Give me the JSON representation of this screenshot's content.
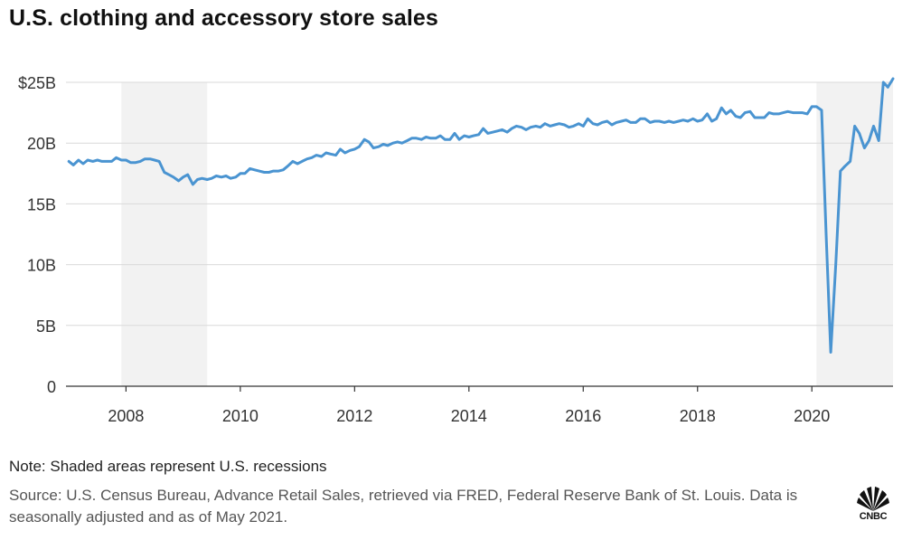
{
  "header": {
    "title": "U.S. clothing and accessory store sales"
  },
  "footer": {
    "note": "Note: Shaded areas represent U.S. recessions",
    "source": "Source: U.S. Census Bureau, Advance Retail Sales, retrieved via FRED, Federal Reserve Bank of St. Louis. Data is seasonally adjusted and as of May 2021.",
    "logo_text": "CNBC"
  },
  "colors": {
    "line": "#4a94d1",
    "recession_shade": "#f2f2f2",
    "grid": "#d9d9d9",
    "axis": "#333333"
  },
  "chart_data": {
    "type": "line",
    "title": "U.S. clothing and accessory store sales",
    "xlabel": "",
    "ylabel": "",
    "units": "billions of USD",
    "xlim": [
      2006.95,
      2021.42
    ],
    "ylim": [
      0,
      25
    ],
    "x_ticks": [
      2008,
      2010,
      2012,
      2014,
      2016,
      2018,
      2020
    ],
    "y_ticks": [
      {
        "value": 0,
        "label": "0"
      },
      {
        "value": 5,
        "label": "5B"
      },
      {
        "value": 10,
        "label": "10B"
      },
      {
        "value": 15,
        "label": "15B"
      },
      {
        "value": 20,
        "label": "20B"
      },
      {
        "value": 25,
        "label": "$25B"
      }
    ],
    "grid": true,
    "recessions": [
      {
        "start": 2007.92,
        "end": 2009.42
      },
      {
        "start": 2020.08,
        "end": 2021.42
      }
    ],
    "series": [
      {
        "name": "Clothing and accessory store sales",
        "points": [
          [
            2007.0,
            18.5
          ],
          [
            2007.08,
            18.2
          ],
          [
            2007.17,
            18.6
          ],
          [
            2007.25,
            18.3
          ],
          [
            2007.33,
            18.6
          ],
          [
            2007.42,
            18.5
          ],
          [
            2007.5,
            18.6
          ],
          [
            2007.58,
            18.5
          ],
          [
            2007.67,
            18.5
          ],
          [
            2007.75,
            18.5
          ],
          [
            2007.83,
            18.8
          ],
          [
            2007.92,
            18.6
          ],
          [
            2008.0,
            18.6
          ],
          [
            2008.08,
            18.4
          ],
          [
            2008.17,
            18.4
          ],
          [
            2008.25,
            18.5
          ],
          [
            2008.33,
            18.7
          ],
          [
            2008.42,
            18.7
          ],
          [
            2008.5,
            18.6
          ],
          [
            2008.58,
            18.5
          ],
          [
            2008.67,
            17.6
          ],
          [
            2008.75,
            17.4
          ],
          [
            2008.83,
            17.2
          ],
          [
            2008.92,
            16.9
          ],
          [
            2009.0,
            17.2
          ],
          [
            2009.08,
            17.4
          ],
          [
            2009.17,
            16.6
          ],
          [
            2009.25,
            17.0
          ],
          [
            2009.33,
            17.1
          ],
          [
            2009.42,
            17.0
          ],
          [
            2009.5,
            17.1
          ],
          [
            2009.58,
            17.3
          ],
          [
            2009.67,
            17.2
          ],
          [
            2009.75,
            17.3
          ],
          [
            2009.83,
            17.1
          ],
          [
            2009.92,
            17.2
          ],
          [
            2010.0,
            17.5
          ],
          [
            2010.08,
            17.5
          ],
          [
            2010.17,
            17.9
          ],
          [
            2010.25,
            17.8
          ],
          [
            2010.33,
            17.7
          ],
          [
            2010.42,
            17.6
          ],
          [
            2010.5,
            17.6
          ],
          [
            2010.58,
            17.7
          ],
          [
            2010.67,
            17.7
          ],
          [
            2010.75,
            17.8
          ],
          [
            2010.83,
            18.1
          ],
          [
            2010.92,
            18.5
          ],
          [
            2011.0,
            18.3
          ],
          [
            2011.08,
            18.5
          ],
          [
            2011.17,
            18.7
          ],
          [
            2011.25,
            18.8
          ],
          [
            2011.33,
            19.0
          ],
          [
            2011.42,
            18.9
          ],
          [
            2011.5,
            19.2
          ],
          [
            2011.58,
            19.1
          ],
          [
            2011.67,
            19.0
          ],
          [
            2011.75,
            19.5
          ],
          [
            2011.83,
            19.2
          ],
          [
            2011.92,
            19.4
          ],
          [
            2012.0,
            19.5
          ],
          [
            2012.08,
            19.7
          ],
          [
            2012.17,
            20.3
          ],
          [
            2012.25,
            20.1
          ],
          [
            2012.33,
            19.6
          ],
          [
            2012.42,
            19.7
          ],
          [
            2012.5,
            19.9
          ],
          [
            2012.58,
            19.8
          ],
          [
            2012.67,
            20.0
          ],
          [
            2012.75,
            20.1
          ],
          [
            2012.83,
            20.0
          ],
          [
            2012.92,
            20.2
          ],
          [
            2013.0,
            20.4
          ],
          [
            2013.08,
            20.4
          ],
          [
            2013.17,
            20.3
          ],
          [
            2013.25,
            20.5
          ],
          [
            2013.33,
            20.4
          ],
          [
            2013.42,
            20.4
          ],
          [
            2013.5,
            20.6
          ],
          [
            2013.58,
            20.3
          ],
          [
            2013.67,
            20.3
          ],
          [
            2013.75,
            20.8
          ],
          [
            2013.83,
            20.3
          ],
          [
            2013.92,
            20.6
          ],
          [
            2014.0,
            20.5
          ],
          [
            2014.08,
            20.6
          ],
          [
            2014.17,
            20.7
          ],
          [
            2014.25,
            21.2
          ],
          [
            2014.33,
            20.8
          ],
          [
            2014.42,
            20.9
          ],
          [
            2014.5,
            21.0
          ],
          [
            2014.58,
            21.1
          ],
          [
            2014.67,
            20.9
          ],
          [
            2014.75,
            21.2
          ],
          [
            2014.83,
            21.4
          ],
          [
            2014.92,
            21.3
          ],
          [
            2015.0,
            21.1
          ],
          [
            2015.08,
            21.3
          ],
          [
            2015.17,
            21.4
          ],
          [
            2015.25,
            21.3
          ],
          [
            2015.33,
            21.6
          ],
          [
            2015.42,
            21.4
          ],
          [
            2015.5,
            21.5
          ],
          [
            2015.58,
            21.6
          ],
          [
            2015.67,
            21.5
          ],
          [
            2015.75,
            21.3
          ],
          [
            2015.83,
            21.4
          ],
          [
            2015.92,
            21.6
          ],
          [
            2016.0,
            21.4
          ],
          [
            2016.08,
            22.0
          ],
          [
            2016.17,
            21.6
          ],
          [
            2016.25,
            21.5
          ],
          [
            2016.33,
            21.7
          ],
          [
            2016.42,
            21.8
          ],
          [
            2016.5,
            21.5
          ],
          [
            2016.58,
            21.7
          ],
          [
            2016.67,
            21.8
          ],
          [
            2016.75,
            21.9
          ],
          [
            2016.83,
            21.7
          ],
          [
            2016.92,
            21.7
          ],
          [
            2017.0,
            22.0
          ],
          [
            2017.08,
            22.0
          ],
          [
            2017.17,
            21.7
          ],
          [
            2017.25,
            21.8
          ],
          [
            2017.33,
            21.8
          ],
          [
            2017.42,
            21.7
          ],
          [
            2017.5,
            21.8
          ],
          [
            2017.58,
            21.7
          ],
          [
            2017.67,
            21.8
          ],
          [
            2017.75,
            21.9
          ],
          [
            2017.83,
            21.8
          ],
          [
            2017.92,
            22.0
          ],
          [
            2018.0,
            21.8
          ],
          [
            2018.08,
            21.9
          ],
          [
            2018.17,
            22.4
          ],
          [
            2018.25,
            21.8
          ],
          [
            2018.33,
            22.0
          ],
          [
            2018.42,
            22.9
          ],
          [
            2018.5,
            22.4
          ],
          [
            2018.58,
            22.7
          ],
          [
            2018.67,
            22.2
          ],
          [
            2018.75,
            22.1
          ],
          [
            2018.83,
            22.5
          ],
          [
            2018.92,
            22.6
          ],
          [
            2019.0,
            22.1
          ],
          [
            2019.08,
            22.1
          ],
          [
            2019.17,
            22.1
          ],
          [
            2019.25,
            22.5
          ],
          [
            2019.33,
            22.4
          ],
          [
            2019.42,
            22.4
          ],
          [
            2019.5,
            22.5
          ],
          [
            2019.58,
            22.6
          ],
          [
            2019.67,
            22.5
          ],
          [
            2019.75,
            22.5
          ],
          [
            2019.83,
            22.5
          ],
          [
            2019.92,
            22.4
          ],
          [
            2020.0,
            23.0
          ],
          [
            2020.08,
            23.0
          ],
          [
            2020.17,
            22.7
          ],
          [
            2020.25,
            12.5
          ],
          [
            2020.33,
            2.8
          ],
          [
            2020.42,
            10.2
          ],
          [
            2020.5,
            17.7
          ],
          [
            2020.58,
            18.1
          ],
          [
            2020.67,
            18.5
          ],
          [
            2020.75,
            21.4
          ],
          [
            2020.83,
            20.8
          ],
          [
            2020.92,
            19.6
          ],
          [
            2021.0,
            20.2
          ],
          [
            2021.08,
            21.4
          ],
          [
            2021.17,
            20.2
          ],
          [
            2021.25,
            25.0
          ],
          [
            2021.33,
            24.6
          ],
          [
            2021.42,
            25.3
          ]
        ]
      }
    ]
  }
}
